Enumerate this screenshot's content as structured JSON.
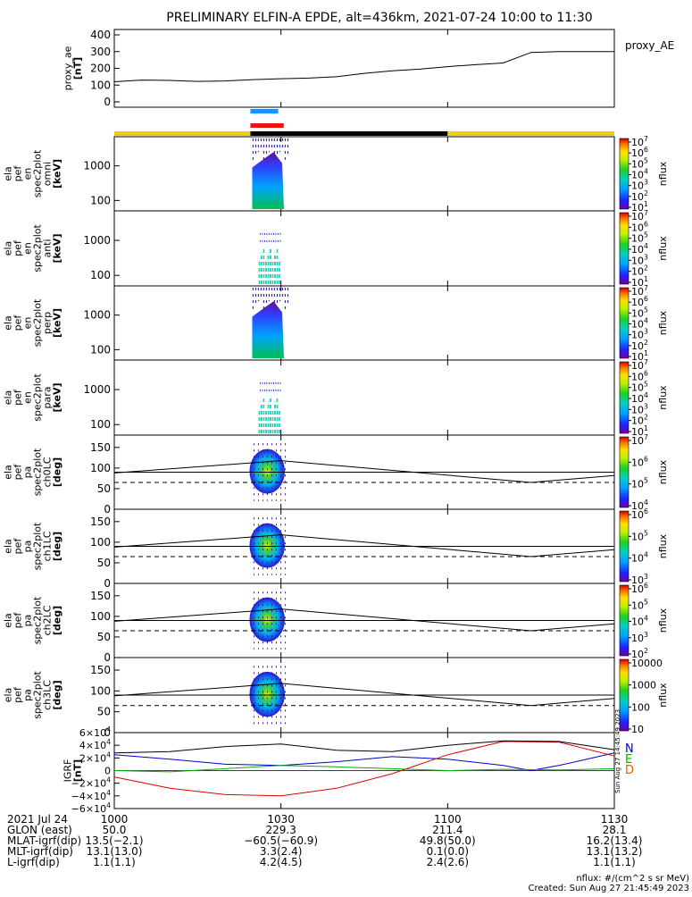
{
  "title": "PRELIMINARY ELFIN-A EPDE, alt=436km, 2021-07-24 10:00 to 11:30",
  "time_axis": {
    "range_minutes": [
      0,
      90
    ],
    "ticks": [
      {
        "label": "1000",
        "min": 0
      },
      {
        "label": "1030",
        "min": 30
      },
      {
        "label": "1100",
        "min": 60
      },
      {
        "label": "1130",
        "min": 90
      }
    ]
  },
  "footer": {
    "rows": [
      {
        "label": "2021 Jul 24",
        "values": [
          "1000",
          "1030",
          "1100",
          "1130"
        ]
      },
      {
        "label": "GLON (east)",
        "values": [
          "50.0",
          "229.3",
          "211.4",
          "28.1"
        ]
      },
      {
        "label": "MLAT-igrf(dip)",
        "values": [
          "13.5(−2.1)",
          "−60.5(−60.9)",
          "49.8(50.0)",
          "16.2(13.4)"
        ]
      },
      {
        "label": "MLT-igrf(dip)",
        "values": [
          "13.1(13.0)",
          "3.3(2.4)",
          "0.1(0.0)",
          "13.1(13.2)"
        ]
      },
      {
        "label": "L-igrf(dip)",
        "values": [
          "1.1(1.1)",
          "4.2(4.5)",
          "2.4(2.6)",
          "1.1(1.1)"
        ]
      }
    ],
    "units_note": "nflux: #/(cm^2 s sr MeV)",
    "created": "Created: Sun Aug 27 21:45:49 2023"
  },
  "side_stamp": "Sun Aug 27 14:45:49 2023",
  "bars": {
    "blue": {
      "start_min": 24.5,
      "end_min": 29.5,
      "color": "#1e90ff"
    },
    "red": {
      "start_min": 24.5,
      "end_min": 30.5,
      "color": "#ee1111"
    },
    "orbit": [
      {
        "start_min": 0,
        "end_min": 24.5,
        "color": "#f0d000"
      },
      {
        "start_min": 24.5,
        "end_min": 60,
        "color": "#000000"
      },
      {
        "start_min": 60,
        "end_min": 90,
        "color": "#f0d000"
      }
    ]
  },
  "panels": [
    {
      "id": "proxy_ae",
      "ylabel": [
        "proxy_ae",
        "[nT]"
      ],
      "yticks": [
        "400",
        "300",
        "200",
        "100",
        "0"
      ],
      "legend": "proxy_AE"
    },
    {
      "id": "omni",
      "ylabel": [
        "ela",
        "pef",
        "en",
        "spec2plot",
        "omni",
        "[keV]"
      ],
      "yticks": [
        "1000",
        "100"
      ],
      "cbar_label": "nflux",
      "cbar_ticks": [
        "10^7",
        "10^6",
        "10^5",
        "10^4",
        "10^3",
        "10^2",
        "10^1"
      ]
    },
    {
      "id": "anti",
      "ylabel": [
        "ela",
        "pef",
        "en",
        "spec2plot",
        "anti",
        "[keV]"
      ],
      "yticks": [
        "1000",
        "100"
      ],
      "cbar_label": "nflux",
      "cbar_ticks": [
        "10^7",
        "10^6",
        "10^5",
        "10^4",
        "10^3",
        "10^2",
        "10^1"
      ]
    },
    {
      "id": "perp",
      "ylabel": [
        "ela",
        "pef",
        "en",
        "spec2plot",
        "perp",
        "[keV]"
      ],
      "yticks": [
        "1000",
        "100"
      ],
      "cbar_label": "nflux",
      "cbar_ticks": [
        "10^7",
        "10^6",
        "10^5",
        "10^4",
        "10^3",
        "10^2",
        "10^1"
      ]
    },
    {
      "id": "para",
      "ylabel": [
        "ela",
        "pef",
        "en",
        "spec2plot",
        "para",
        "[keV]"
      ],
      "yticks": [
        "1000",
        "100"
      ],
      "cbar_label": "nflux",
      "cbar_ticks": [
        "10^7",
        "10^6",
        "10^5",
        "10^4",
        "10^3",
        "10^2",
        "10^1"
      ]
    },
    {
      "id": "ch0LC",
      "ylabel": [
        "ela",
        "pef",
        "pa",
        "spec2plot",
        "ch0LC",
        "[deg]"
      ],
      "yticks": [
        "150",
        "100",
        "50",
        "0"
      ],
      "cbar_label": "nflux",
      "cbar_ticks": [
        "10^7",
        "10^6",
        "10^5",
        "10^4"
      ]
    },
    {
      "id": "ch1LC",
      "ylabel": [
        "ela",
        "pef",
        "pa",
        "spec2plot",
        "ch1LC",
        "[deg]"
      ],
      "yticks": [
        "150",
        "100",
        "50",
        "0"
      ],
      "cbar_label": "nflux",
      "cbar_ticks": [
        "10^6",
        "10^5",
        "10^4",
        "10^3"
      ]
    },
    {
      "id": "ch2LC",
      "ylabel": [
        "ela",
        "pef",
        "pa",
        "spec2plot",
        "ch2LC",
        "[deg]"
      ],
      "yticks": [
        "150",
        "100",
        "50",
        "0"
      ],
      "cbar_label": "nflux",
      "cbar_ticks": [
        "10^6",
        "10^5",
        "10^4",
        "10^3",
        "10^2"
      ]
    },
    {
      "id": "ch3LC",
      "ylabel": [
        "ela",
        "pef",
        "pa",
        "spec2plot",
        "ch3LC",
        "[deg]"
      ],
      "yticks": [
        "150",
        "100",
        "50",
        "0"
      ],
      "cbar_label": "nflux",
      "cbar_ticks": [
        "10000",
        "1000",
        "100",
        "10"
      ]
    },
    {
      "id": "igrf",
      "ylabel": [
        "IGRF",
        "[nT]"
      ],
      "yticks": [
        "6×10^4",
        "4×10^4",
        "2×10^4",
        "0",
        "−2×10^4",
        "−4×10^4",
        "−6×10^4"
      ],
      "legend": [
        "N",
        "E",
        "D"
      ]
    }
  ],
  "chart_data": {
    "type": "line",
    "title": "PRELIMINARY ELFIN-A EPDE, alt=436km, 2021-07-24 10:00 to 11:30",
    "x_unit": "minutes after 10:00 UT",
    "proxy_ae": {
      "ylim": [
        0,
        400
      ],
      "x": [
        0,
        5,
        10,
        15,
        20,
        25,
        30,
        35,
        40,
        45,
        50,
        55,
        60,
        65,
        70,
        75,
        80,
        85,
        90
      ],
      "y": [
        120,
        130,
        128,
        122,
        125,
        133,
        138,
        142,
        150,
        170,
        185,
        195,
        210,
        222,
        232,
        295,
        300,
        300,
        300
      ]
    },
    "pitch_angle_lines": {
      "x": [
        0,
        30,
        75,
        90
      ],
      "loss_cone_solid": [
        88,
        118,
        65,
        82
      ],
      "loss_cone_dashed": [
        65,
        65,
        65,
        65
      ],
      "horizontal_solid": [
        90,
        90,
        90,
        90
      ]
    },
    "igrf": {
      "ylim": [
        -60000,
        60000
      ],
      "series": [
        {
          "name": "N",
          "color": "#0000cc",
          "x": [
            0,
            10,
            20,
            30,
            40,
            50,
            60,
            70,
            75,
            80,
            90
          ],
          "y": [
            25000,
            18000,
            10000,
            8000,
            14000,
            22000,
            18000,
            8000,
            0,
            8000,
            28000
          ]
        },
        {
          "name": "E",
          "color": "#00b000",
          "x": [
            0,
            10,
            20,
            30,
            40,
            50,
            60,
            70,
            80,
            90
          ],
          "y": [
            0,
            -2000,
            3000,
            8000,
            6000,
            3000,
            0,
            2000,
            1000,
            3000
          ]
        },
        {
          "name": "D",
          "color": "#dd0000",
          "x": [
            0,
            10,
            20,
            30,
            40,
            50,
            60,
            70,
            80,
            90
          ],
          "y": [
            -10000,
            -28000,
            -38000,
            -40000,
            -28000,
            -5000,
            25000,
            46000,
            45000,
            23000
          ]
        },
        {
          "name": "total",
          "color": "#000000",
          "x": [
            0,
            10,
            20,
            30,
            40,
            50,
            60,
            70,
            80,
            90
          ],
          "y": [
            28000,
            30000,
            38000,
            42000,
            32000,
            30000,
            40000,
            47000,
            46000,
            33000
          ]
        }
      ]
    },
    "spectrogram_burst": {
      "start_min": 24.5,
      "end_min": 31.5
    }
  }
}
